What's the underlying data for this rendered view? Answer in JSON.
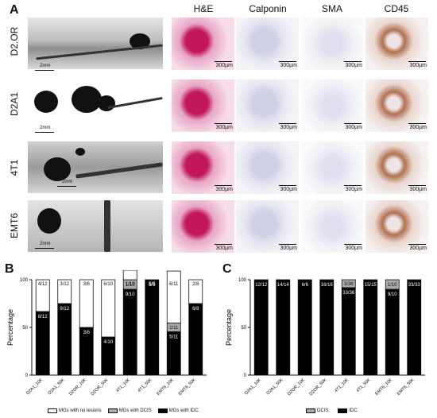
{
  "panelA": {
    "letter": "A",
    "columns": [
      "H&E",
      "Calponin",
      "SMA",
      "CD45"
    ],
    "rows": [
      "D2.OR",
      "D2A1",
      "4T1",
      "EMT6"
    ],
    "whole_mount_scale": "2mm",
    "tile_scale": "300µm"
  },
  "chartB": {
    "letter": "B",
    "chart_data": {
      "type": "bar",
      "stacked": true,
      "ylabel": "Percentage",
      "ylim": [
        0,
        100
      ],
      "yticks": [
        0,
        50,
        100
      ],
      "categories": [
        "D2A1_10K",
        "D2A1_50K",
        "D2OR_10K",
        "D2OR_50K",
        "4T1_10K",
        "4T1_50K",
        "EMT6_10K",
        "EMT6_50K"
      ],
      "series": [
        {
          "name": "MGs with IDC",
          "color": "#000000",
          "values": [
            66.7,
            75,
            50,
            40,
            90,
            100,
            45.5,
            75
          ],
          "labels": [
            "8/12",
            "9/12",
            "3/6",
            "4/10",
            "9/10",
            "5/5",
            "5/11",
            "6/8"
          ]
        },
        {
          "name": "MGs with DCIS",
          "color": "#a8a8a8",
          "values": [
            0,
            0,
            0,
            0,
            10,
            0,
            9.1,
            0
          ],
          "labels": [
            "",
            "",
            "",
            "",
            "1/10",
            "",
            "1/11",
            ""
          ]
        },
        {
          "name": "MGs with no lesions",
          "color": "#ffffff",
          "values": [
            33.3,
            25,
            50,
            60,
            10,
            0,
            54.5,
            25
          ],
          "labels": [
            "4/12",
            "3/12",
            "3/6",
            "6/10",
            "1/10",
            "",
            "6/11",
            "2/8"
          ]
        }
      ],
      "top_labels": [
        "4/12",
        "3/12",
        "3/6",
        "6/10",
        "1/10",
        "5/5",
        "6/11",
        "2/8"
      ]
    }
  },
  "chartC": {
    "letter": "C",
    "chart_data": {
      "type": "bar",
      "stacked": true,
      "ylabel": "Percentage",
      "ylim": [
        0,
        100
      ],
      "yticks": [
        0,
        50,
        100
      ],
      "categories": [
        "D2A1_10K",
        "D2A1_50K",
        "D2OR_10K",
        "D2OR_50K",
        "4T1_10K",
        "4T1_50K",
        "EMT6_10K",
        "EMT6_50K"
      ],
      "series": [
        {
          "name": "IDC",
          "color": "#000000",
          "values": [
            100,
            100,
            100,
            100,
            91.7,
            100,
            90,
            100
          ],
          "labels": [
            "12/12",
            "14/14",
            "6/6",
            "16/16",
            "33/36",
            "15/15",
            "9/10",
            "33/33"
          ]
        },
        {
          "name": "DCIS",
          "color": "#a8a8a8",
          "values": [
            0,
            0,
            0,
            0,
            8.3,
            0,
            10,
            0
          ],
          "labels": [
            "",
            "",
            "",
            "",
            "3/36",
            "",
            "1/10",
            ""
          ]
        }
      ]
    }
  }
}
